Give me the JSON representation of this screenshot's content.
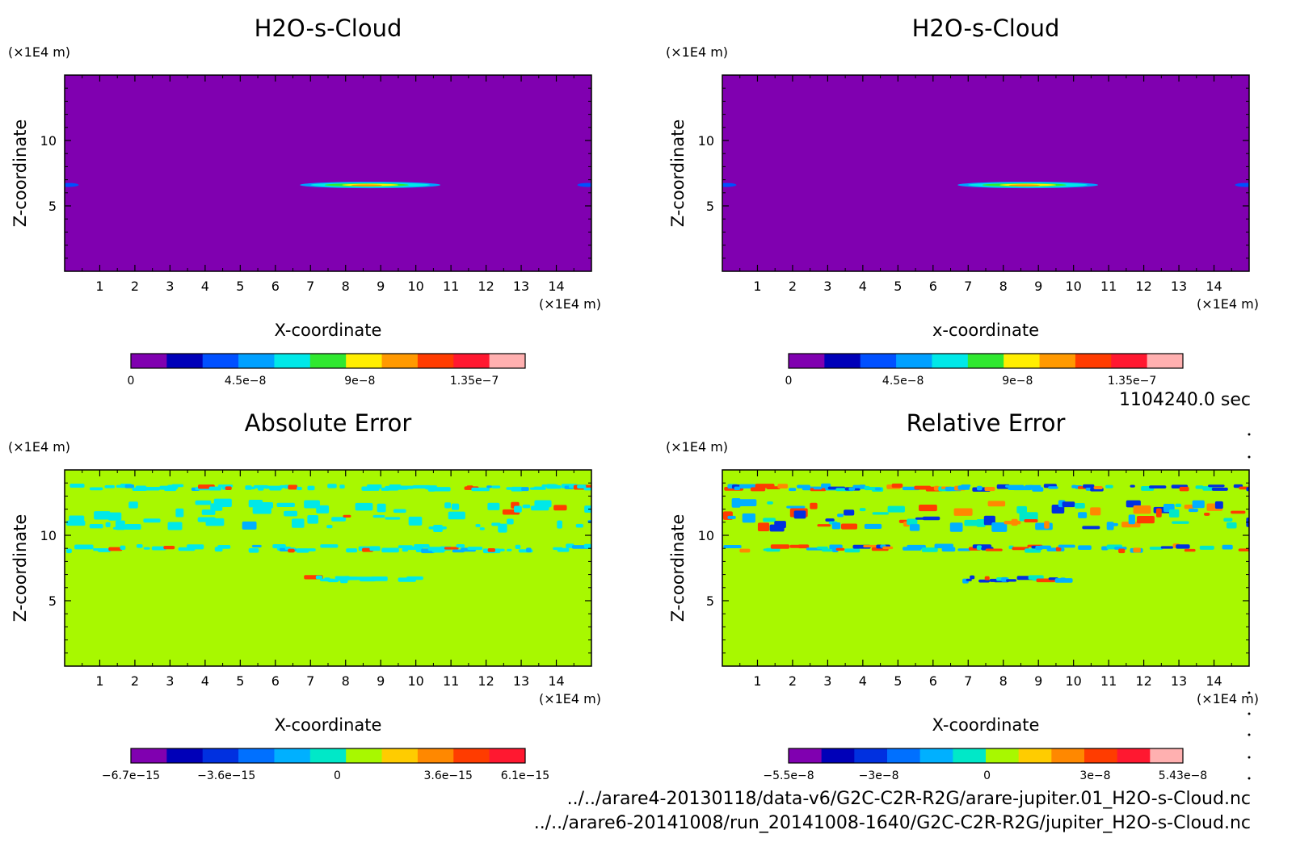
{
  "time_label": "1104240.0 sec",
  "footer": {
    "line1": "../../arare4-20130118/data-v6/G2C-C2R-R2G/arare-jupiter.01_H2O-s-Cloud.nc",
    "line2": "../../arare6-20141008/run_20141008-1640/G2C-C2R-R2G/jupiter_H2O-s-Cloud.nc"
  },
  "chart_data": [
    {
      "type": "heatmap",
      "title": "H2O-s-Cloud",
      "xlabel": "X-coordinate",
      "ylabel": "Z-coordinate",
      "x_unit": "(×1E4 m)",
      "y_unit": "(×1E4 m)",
      "xlim": [
        0,
        15
      ],
      "ylim": [
        0,
        15
      ],
      "x_ticks": [
        "1",
        "2",
        "3",
        "4",
        "5",
        "6",
        "7",
        "8",
        "9",
        "10",
        "11",
        "12",
        "13",
        "14"
      ],
      "y_ticks": [
        "5",
        "10"
      ],
      "background_color": "#8000b0",
      "features": [
        {
          "shape": "thin lens cloud layer",
          "x_center": 8.7,
          "x_half_width": 2.0,
          "z": 6.6,
          "peak": "1.35e-7"
        },
        {
          "shape": "edge sliver",
          "x_center": 0.1,
          "x_half_width": 0.3,
          "z": 6.6
        },
        {
          "shape": "edge sliver",
          "x_center": 14.9,
          "x_half_width": 0.3,
          "z": 6.6
        }
      ],
      "colorbar": {
        "colors": [
          "#8000b0",
          "#0000b8",
          "#0050ff",
          "#00a0ff",
          "#00e8e8",
          "#30e830",
          "#ffee00",
          "#ff9900",
          "#ff3c00",
          "#ff1830",
          "#ffb0b0"
        ],
        "tick_labels": [
          {
            "value": 0,
            "label": "0"
          },
          {
            "value": 4.5e-08,
            "label": "4.5e−8"
          },
          {
            "value": 9e-08,
            "label": "9e−8"
          },
          {
            "value": 1.35e-07,
            "label": "1.35e−7"
          }
        ],
        "range": [
          0,
          1.55e-07
        ]
      }
    },
    {
      "type": "heatmap",
      "title": "H2O-s-Cloud",
      "xlabel": "x-coordinate",
      "ylabel": "Z-coordinate",
      "x_unit": "(×1E4 m)",
      "y_unit": "(×1E4 m)",
      "xlim": [
        0,
        15
      ],
      "ylim": [
        0,
        15
      ],
      "x_ticks": [
        "1",
        "2",
        "3",
        "4",
        "5",
        "6",
        "7",
        "8",
        "9",
        "10",
        "11",
        "12",
        "13",
        "14"
      ],
      "y_ticks": [
        "5",
        "10"
      ],
      "background_color": "#8000b0",
      "features": [
        {
          "shape": "thin lens cloud layer",
          "x_center": 8.7,
          "x_half_width": 2.0,
          "z": 6.6,
          "peak": "1.35e-7"
        },
        {
          "shape": "edge sliver",
          "x_center": 0.1,
          "x_half_width": 0.3,
          "z": 6.6
        },
        {
          "shape": "edge sliver",
          "x_center": 14.9,
          "x_half_width": 0.3,
          "z": 6.6
        }
      ],
      "colorbar": {
        "colors": [
          "#8000b0",
          "#0000b8",
          "#0050ff",
          "#00a0ff",
          "#00e8e8",
          "#30e830",
          "#ffee00",
          "#ff9900",
          "#ff3c00",
          "#ff1830",
          "#ffb0b0"
        ],
        "tick_labels": [
          {
            "value": 0,
            "label": "0"
          },
          {
            "value": 4.5e-08,
            "label": "4.5e−8"
          },
          {
            "value": 9e-08,
            "label": "9e−8"
          },
          {
            "value": 1.35e-07,
            "label": "1.35e−7"
          }
        ],
        "range": [
          0,
          1.55e-07
        ]
      }
    },
    {
      "type": "heatmap",
      "title": "Absolute Error",
      "xlabel": "X-coordinate",
      "ylabel": "Z-coordinate",
      "x_unit": "(×1E4 m)",
      "y_unit": "(×1E4 m)",
      "xlim": [
        0,
        15
      ],
      "ylim": [
        0,
        15
      ],
      "x_ticks": [
        "1",
        "2",
        "3",
        "4",
        "5",
        "6",
        "7",
        "8",
        "9",
        "10",
        "11",
        "12",
        "13",
        "14"
      ],
      "y_ticks": [
        "5",
        "10"
      ],
      "background_color": "#a8f800",
      "noise_bands": [
        {
          "z_min": 13.5,
          "z_max": 13.8,
          "coverage": 0.5
        },
        {
          "z_min": 10.5,
          "z_max": 12.5,
          "coverage": 0.45
        },
        {
          "z_min": 8.8,
          "z_max": 9.2,
          "coverage": 0.4
        },
        {
          "z_min": 6.5,
          "z_max": 6.8,
          "x_min": 6.8,
          "x_max": 9.8,
          "coverage": 0.6
        }
      ],
      "colorbar": {
        "colors": [
          "#8000b0",
          "#0000b8",
          "#0030e0",
          "#0070ff",
          "#00b0ff",
          "#00e8c8",
          "#a8f800",
          "#ffcc00",
          "#ff8800",
          "#ff3c00",
          "#ff1830"
        ],
        "tick_labels": [
          {
            "value": -6.7e-15,
            "label": "−6.7e−15"
          },
          {
            "value": -3.6e-15,
            "label": "−3.6e−15"
          },
          {
            "value": 0,
            "label": "0"
          },
          {
            "value": 3.6e-15,
            "label": "3.6e−15"
          },
          {
            "value": 6.1e-15,
            "label": "6.1e−15"
          }
        ],
        "range": [
          -6.7e-15,
          6.1e-15
        ]
      }
    },
    {
      "type": "heatmap",
      "title": "Relative Error",
      "xlabel": "X-coordinate",
      "ylabel": "Z-coordinate",
      "x_unit": "(×1E4 m)",
      "y_unit": "(×1E4 m)",
      "xlim": [
        0,
        15
      ],
      "ylim": [
        0,
        15
      ],
      "x_ticks": [
        "1",
        "2",
        "3",
        "4",
        "5",
        "6",
        "7",
        "8",
        "9",
        "10",
        "11",
        "12",
        "13",
        "14"
      ],
      "y_ticks": [
        "5",
        "10"
      ],
      "background_color": "#a8f800",
      "noise_bands": [
        {
          "z_min": 13.5,
          "z_max": 13.8,
          "coverage": 0.5
        },
        {
          "z_min": 10.5,
          "z_max": 12.5,
          "coverage": 0.55
        },
        {
          "z_min": 8.8,
          "z_max": 9.2,
          "coverage": 0.45
        },
        {
          "z_min": 6.5,
          "z_max": 6.8,
          "x_min": 6.8,
          "x_max": 9.8,
          "coverage": 0.6
        }
      ],
      "colorbar": {
        "colors": [
          "#8000b0",
          "#0000b8",
          "#0030e0",
          "#0070ff",
          "#00b0ff",
          "#00e8c8",
          "#a8f800",
          "#ffcc00",
          "#ff8800",
          "#ff3c00",
          "#ff1830",
          "#ffb0b0"
        ],
        "tick_labels": [
          {
            "value": -5.5e-08,
            "label": "−5.5e−8"
          },
          {
            "value": -3e-08,
            "label": "−3e−8"
          },
          {
            "value": 0,
            "label": "0"
          },
          {
            "value": 3e-08,
            "label": "3e−8"
          },
          {
            "value": 5.43e-08,
            "label": "5.43e−8"
          }
        ],
        "range": [
          -5.5e-08,
          5.43e-08
        ]
      }
    }
  ]
}
